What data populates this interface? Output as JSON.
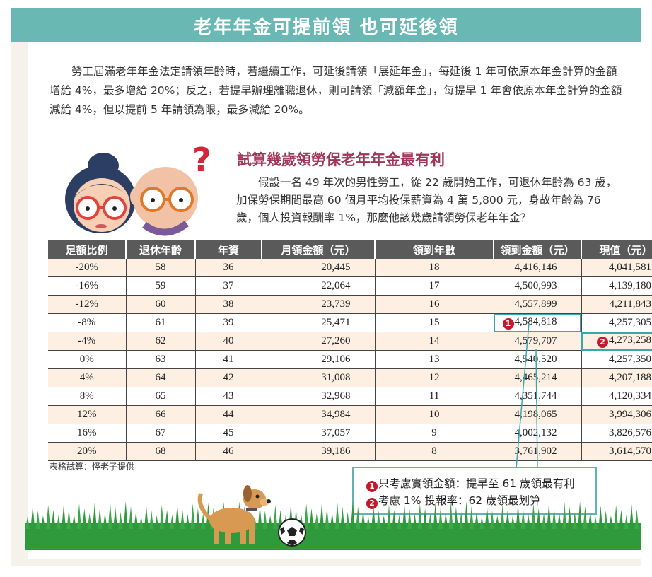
{
  "header": {
    "title": "老年年金可提前領 也可延後領"
  },
  "intro": "勞工屆滿老年年金法定請領年齡時，若繼續工作，可延後請領「展延年金」，每延後 1 年可依原本年金計算的金額增給 4%，最多增給 20%；反之，若提早辦理離職退休，則可請領「減額年金」，每提早 1 年會依原本年金計算的金額減給 4%，但以提前 5 年請領為限，最多減給 20%。",
  "section": {
    "title": "試算幾歲領勞保老年年金最有利",
    "body": "假設一名 49 年次的男性勞工，從 22 歲開始工作，可退休年齡為 63 歲，加保勞保期間最高 60 個月平均投保薪資為 4 萬 5,800 元，身故年齡為 76 歲，個人投資報酬率 1%，那麼他該幾歲請領勞保老年年金？"
  },
  "table": {
    "headers": [
      "足額比例",
      "退休年齡",
      "年資",
      "月領金額（元）",
      "領到年數",
      "領到金額（元）",
      "現值（元）"
    ],
    "rows": [
      [
        "-20%",
        "58",
        "36",
        "20,445",
        "18",
        "4,416,146",
        "4,041,581"
      ],
      [
        "-16%",
        "59",
        "37",
        "22,064",
        "17",
        "4,500,993",
        "4,139,180"
      ],
      [
        "-12%",
        "60",
        "38",
        "23,739",
        "16",
        "4,557,899",
        "4,211,843"
      ],
      [
        "-8%",
        "61",
        "39",
        "25,471",
        "15",
        "4,584,818",
        "4,257,305"
      ],
      [
        "-4%",
        "62",
        "40",
        "27,260",
        "14",
        "4,579,707",
        "4,273,258"
      ],
      [
        "0%",
        "63",
        "41",
        "29,106",
        "13",
        "4,540,520",
        "4,257,350"
      ],
      [
        "4%",
        "64",
        "42",
        "31,008",
        "12",
        "4,465,214",
        "4,207,188"
      ],
      [
        "8%",
        "65",
        "43",
        "32,968",
        "11",
        "4,351,744",
        "4,120,334"
      ],
      [
        "12%",
        "66",
        "44",
        "34,984",
        "10",
        "4,198,065",
        "3,994,306"
      ],
      [
        "16%",
        "67",
        "45",
        "37,057",
        "9",
        "4,002,132",
        "3,826,576"
      ],
      [
        "20%",
        "68",
        "46",
        "39,186",
        "8",
        "3,761,902",
        "3,614,570"
      ]
    ],
    "source": "表格試算：怪老子提供"
  },
  "markers": {
    "one": "1",
    "two": "2"
  },
  "notes": [
    {
      "marker": "1",
      "text": "只考慮實領金額：提早至 61 歲領最有利"
    },
    {
      "marker": "2",
      "text": "考慮 1% 投報率：62 歲領最划算"
    }
  ],
  "colors": {
    "header_bg": "#6ab8b4",
    "title_color": "#a0355a",
    "table_header_bg": "#5a5a5a",
    "row_alt_bg": "#fdf0e3",
    "highlight": "#3aa7b0",
    "marker": "#c01a2b",
    "grass": "#2f9a3c"
  }
}
